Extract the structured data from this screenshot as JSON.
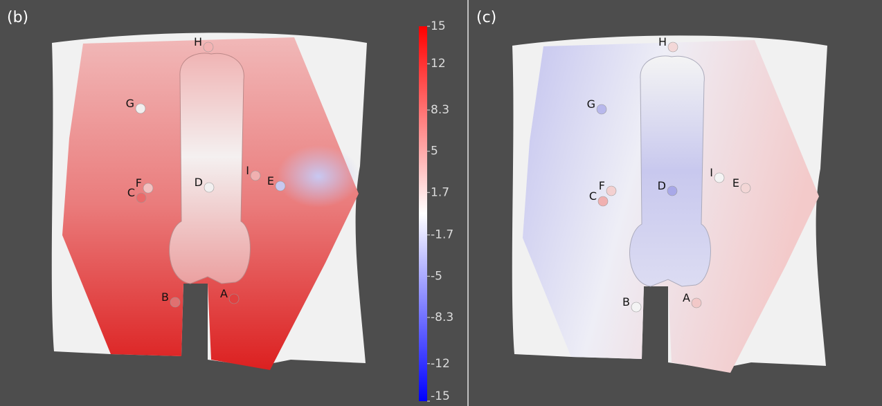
{
  "panels": [
    {
      "label": "(b)",
      "landmarks": [
        {
          "label": "H",
          "color": "#f3b3b3"
        },
        {
          "label": "G",
          "color": "#f2eeee"
        },
        {
          "label": "F",
          "color": "#f3c0c0"
        },
        {
          "label": "C",
          "color": "#ea6a6a"
        },
        {
          "label": "D",
          "color": "#f2f0f0"
        },
        {
          "label": "I",
          "color": "#f0b0b0"
        },
        {
          "label": "E",
          "color": "#c8c8f0"
        },
        {
          "label": "B",
          "color": "#e07070"
        },
        {
          "label": "A",
          "color": "#e04040"
        }
      ]
    },
    {
      "label": "(c)",
      "landmarks": [
        {
          "label": "H",
          "color": "#f3d8d8"
        },
        {
          "label": "G",
          "color": "#b8b8ec"
        },
        {
          "label": "F",
          "color": "#f3d0d0"
        },
        {
          "label": "C",
          "color": "#f0b0b0"
        },
        {
          "label": "D",
          "color": "#a8a8e8"
        },
        {
          "label": "I",
          "color": "#f4f4f4"
        },
        {
          "label": "E",
          "color": "#f3d6d6"
        },
        {
          "label": "B",
          "color": "#f4f4f4"
        },
        {
          "label": "A",
          "color": "#f2c8c8"
        }
      ]
    }
  ],
  "colorbar": {
    "lim": [
      -15,
      15
    ],
    "colors": [
      "#0000ff",
      "#ffffff",
      "#ff0000"
    ],
    "ticks": [
      15,
      12,
      8.3,
      5,
      1.7,
      -1.7,
      -5,
      -8.3,
      -12,
      -15
    ]
  }
}
